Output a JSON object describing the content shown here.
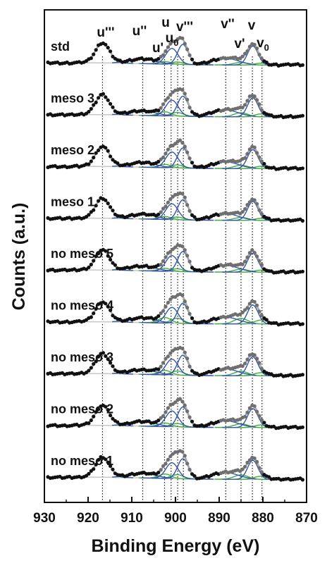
{
  "chart_data": {
    "type": "line",
    "xlabel": "Binding Energy (eV)",
    "ylabel": "Counts (a.u.)",
    "xlim": [
      930,
      870
    ],
    "x_reversed": true,
    "xticks": [
      930,
      920,
      910,
      900,
      890,
      880,
      870
    ],
    "grid": false,
    "colors": {
      "data_points": "#111111",
      "envelope": "#a9a9a9",
      "background": "#c8c8c8",
      "ce3_components": "#3fae3f",
      "ce4_components": "#3355aa",
      "fit_markers": "#6f6f6f"
    },
    "peak_markers": [
      {
        "label": "u'''",
        "sub": "",
        "x": 916.7
      },
      {
        "label": "u''",
        "sub": "",
        "x": 907.5
      },
      {
        "label": "u'",
        "sub": "",
        "x": 902.5
      },
      {
        "label": "u",
        "sub": "",
        "x": 901.0
      },
      {
        "label": "u",
        "sub": "0",
        "x": 899.5
      },
      {
        "label": "v'''",
        "sub": "",
        "x": 898.2
      },
      {
        "label": "v''",
        "sub": "",
        "x": 888.5
      },
      {
        "label": "v'",
        "sub": "",
        "x": 885.0
      },
      {
        "label": "v",
        "sub": "",
        "x": 882.4
      },
      {
        "label": "v",
        "sub": "0",
        "x": 880.2
      }
    ],
    "series": [
      {
        "name": "std",
        "ce3_weight": 0.35
      },
      {
        "name": "meso 3",
        "ce3_weight": 0.55
      },
      {
        "name": "meso 2",
        "ce3_weight": 0.45
      },
      {
        "name": "meso 1",
        "ce3_weight": 0.4
      },
      {
        "name": "no meso 5",
        "ce3_weight": 0.4
      },
      {
        "name": "no meso 4",
        "ce3_weight": 0.75
      },
      {
        "name": "no meso 3",
        "ce3_weight": 0.6
      },
      {
        "name": "no meso 2",
        "ce3_weight": 0.5
      },
      {
        "name": "no meso 1",
        "ce3_weight": 0.6
      }
    ]
  }
}
